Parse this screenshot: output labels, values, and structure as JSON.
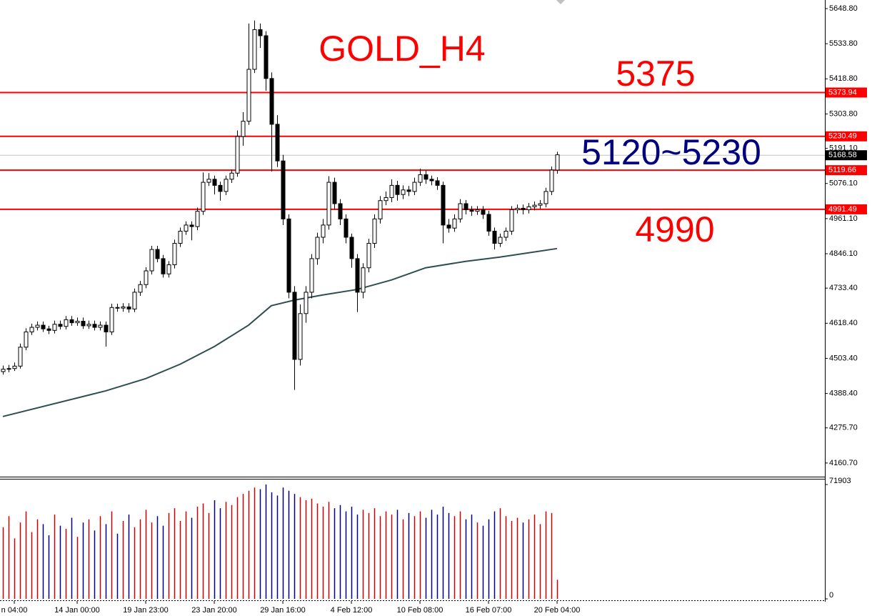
{
  "chart_data": {
    "type": "candlestick",
    "title": "GOLD_H4",
    "annotations": [
      {
        "text": "5375",
        "color": "#ff0000"
      },
      {
        "text": "5120~5230",
        "color": "#000080"
      },
      {
        "text": "4990",
        "color": "#ff0000"
      }
    ],
    "ylim": [
      4116,
      5677
    ],
    "yticks": [
      {
        "value": 5648.8,
        "label": "5648.80"
      },
      {
        "value": 5533.8,
        "label": "5533.80"
      },
      {
        "value": 5418.8,
        "label": "5418.80"
      },
      {
        "value": 5303.8,
        "label": "5303.80"
      },
      {
        "value": 5191.1,
        "label": "5191.10"
      },
      {
        "value": 5076.1,
        "label": "5076.10"
      },
      {
        "value": 4961.1,
        "label": "4961.10"
      },
      {
        "value": 4846.1,
        "label": "4846.10"
      },
      {
        "value": 4733.4,
        "label": "4733.40"
      },
      {
        "value": 4618.4,
        "label": "4618.40"
      },
      {
        "value": 4503.4,
        "label": "4503.40"
      },
      {
        "value": 4388.4,
        "label": "4388.40"
      },
      {
        "value": 4275.7,
        "label": "4275.70"
      },
      {
        "value": 4160.7,
        "label": "4160.70"
      }
    ],
    "levels": [
      5373.94,
      5230.49,
      5119.66,
      4991.49
    ],
    "level_color": "#ff0000",
    "current_price": 5168.58,
    "categories": [
      null,
      null,
      "n 04:00",
      null,
      null,
      null,
      null,
      null,
      null,
      null,
      null,
      null,
      null,
      "14 Jan 00:00",
      null,
      null,
      null,
      null,
      null,
      null,
      null,
      null,
      null,
      null,
      null,
      "19 Jan 23:00",
      null,
      null,
      null,
      null,
      null,
      null,
      null,
      null,
      null,
      null,
      null,
      "23 Jan 20:00",
      null,
      null,
      null,
      null,
      null,
      null,
      null,
      null,
      null,
      null,
      null,
      "29 Jan 16:00",
      null,
      null,
      null,
      null,
      null,
      null,
      null,
      null,
      null,
      null,
      null,
      "4 Feb 12:00",
      null,
      null,
      null,
      null,
      null,
      null,
      null,
      null,
      null,
      null,
      null,
      "10 Feb 08:00",
      null,
      null,
      null,
      null,
      null,
      null,
      null,
      null,
      null,
      null,
      null,
      "16 Feb 07:00",
      null,
      null,
      null,
      null,
      null,
      null,
      null,
      null,
      null,
      null,
      null,
      "20 Feb 04:00"
    ],
    "ohlc": [
      [
        4460,
        4480,
        4450,
        4468
      ],
      [
        4468,
        4482,
        4458,
        4470
      ],
      [
        4470,
        4490,
        4462,
        4478
      ],
      [
        4478,
        4552,
        4470,
        4540
      ],
      [
        4540,
        4602,
        4530,
        4590
      ],
      [
        4590,
        4617,
        4580,
        4605
      ],
      [
        4605,
        4624,
        4595,
        4612
      ],
      [
        4612,
        4624,
        4590,
        4600
      ],
      [
        4600,
        4610,
        4583,
        4595
      ],
      [
        4595,
        4627,
        4585,
        4615
      ],
      [
        4615,
        4627,
        4598,
        4608
      ],
      [
        4608,
        4642,
        4598,
        4630
      ],
      [
        4630,
        4642,
        4610,
        4620
      ],
      [
        4620,
        4637,
        4610,
        4625
      ],
      [
        4625,
        4637,
        4600,
        4610
      ],
      [
        4610,
        4627,
        4600,
        4615
      ],
      [
        4615,
        4627,
        4595,
        4605
      ],
      [
        4605,
        4624,
        4595,
        4612
      ],
      [
        4612,
        4624,
        4542,
        4590
      ],
      [
        4590,
        4682,
        4580,
        4670
      ],
      [
        4670,
        4682,
        4656,
        4668
      ],
      [
        4668,
        4684,
        4656,
        4672
      ],
      [
        4672,
        4684,
        4653,
        4665
      ],
      [
        4665,
        4732,
        4655,
        4720
      ],
      [
        4720,
        4757,
        4708,
        4745
      ],
      [
        4745,
        4802,
        4733,
        4790
      ],
      [
        4790,
        4872,
        4778,
        4860
      ],
      [
        4860,
        4872,
        4818,
        4830
      ],
      [
        4830,
        4842,
        4768,
        4780
      ],
      [
        4780,
        4822,
        4768,
        4810
      ],
      [
        4810,
        4892,
        4798,
        4880
      ],
      [
        4880,
        4932,
        4868,
        4920
      ],
      [
        4920,
        4952,
        4908,
        4940
      ],
      [
        4940,
        4952,
        4890,
        4935
      ],
      [
        4935,
        4997,
        4923,
        4985
      ],
      [
        4985,
        5112,
        4973,
        5080
      ],
      [
        5080,
        5110,
        5068,
        5090
      ],
      [
        5090,
        5102,
        5040,
        5070
      ],
      [
        5070,
        5082,
        5020,
        5050
      ],
      [
        5050,
        5102,
        5038,
        5090
      ],
      [
        5090,
        5122,
        5078,
        5110
      ],
      [
        5110,
        5250,
        5098,
        5230
      ],
      [
        5230,
        5310,
        5200,
        5280
      ],
      [
        5280,
        5600,
        5268,
        5450
      ],
      [
        5450,
        5610,
        5438,
        5580
      ],
      [
        5580,
        5600,
        5520,
        5560
      ],
      [
        5560,
        5575,
        5380,
        5420
      ],
      [
        5420,
        5440,
        5115,
        5270
      ],
      [
        5270,
        5300,
        5130,
        5150
      ],
      [
        5150,
        5170,
        4940,
        4960
      ],
      [
        4960,
        4975,
        4700,
        4720
      ],
      [
        4720,
        4740,
        4400,
        4500
      ],
      [
        4500,
        4680,
        4480,
        4650
      ],
      [
        4650,
        4740,
        4620,
        4720
      ],
      [
        4720,
        4845,
        4700,
        4830
      ],
      [
        4830,
        4915,
        4810,
        4900
      ],
      [
        4900,
        4960,
        4880,
        4940
      ],
      [
        4940,
        5100,
        4925,
        5080
      ],
      [
        5080,
        5095,
        4990,
        5010
      ],
      [
        5010,
        5025,
        4940,
        4960
      ],
      [
        4960,
        4975,
        4880,
        4900
      ],
      [
        4900,
        4912,
        4800,
        4830
      ],
      [
        4830,
        4845,
        4655,
        4720
      ],
      [
        4720,
        4815,
        4700,
        4800
      ],
      [
        4800,
        4895,
        4785,
        4880
      ],
      [
        4880,
        4975,
        4865,
        4960
      ],
      [
        4960,
        5035,
        4945,
        5020
      ],
      [
        5020,
        5050,
        5005,
        5030
      ],
      [
        5030,
        5090,
        5015,
        5070
      ],
      [
        5070,
        5085,
        5020,
        5040
      ],
      [
        5040,
        5070,
        5025,
        5055
      ],
      [
        5055,
        5068,
        5035,
        5050
      ],
      [
        5050,
        5095,
        5038,
        5080
      ],
      [
        5080,
        5125,
        5068,
        5105
      ],
      [
        5105,
        5120,
        5075,
        5090
      ],
      [
        5090,
        5102,
        5070,
        5085
      ],
      [
        5085,
        5097,
        5055,
        5070
      ],
      [
        5070,
        5082,
        4880,
        4940
      ],
      [
        4940,
        4960,
        4915,
        4930
      ],
      [
        4930,
        4975,
        4918,
        4960
      ],
      [
        4960,
        5025,
        4948,
        5010
      ],
      [
        5010,
        5022,
        4975,
        4990
      ],
      [
        4990,
        5002,
        4970,
        4985
      ],
      [
        4985,
        5002,
        4973,
        4990
      ],
      [
        4990,
        5002,
        4960,
        4975
      ],
      [
        4975,
        4987,
        4905,
        4920
      ],
      [
        4920,
        4932,
        4860,
        4880
      ],
      [
        4880,
        4912,
        4868,
        4900
      ],
      [
        4900,
        4932,
        4888,
        4920
      ],
      [
        4920,
        5002,
        4908,
        4990
      ],
      [
        4990,
        5007,
        4978,
        4995
      ],
      [
        4995,
        5007,
        4975,
        4990
      ],
      [
        4990,
        5012,
        4978,
        5000
      ],
      [
        5000,
        5017,
        4988,
        5005
      ],
      [
        5005,
        5022,
        4993,
        5010
      ],
      [
        5010,
        5062,
        4998,
        5050
      ],
      [
        5050,
        5132,
        5038,
        5120
      ],
      [
        5120,
        5180,
        5108,
        5170
      ]
    ],
    "ma": {
      "color": "#2f4f4f",
      "x": [
        0,
        18,
        25,
        31,
        37,
        43,
        47,
        51,
        56,
        62,
        68,
        74,
        81,
        87,
        97
      ],
      "values": [
        4313,
        4397,
        4437,
        4484,
        4542,
        4612,
        4676,
        4694,
        4711,
        4729,
        4760,
        4800,
        4821,
        4835,
        4863
      ]
    },
    "volume": {
      "ylim": [
        0,
        75500
      ],
      "yticks": [
        0,
        71903
      ],
      "up_color": "#cc0000",
      "down_color": "#000080",
      "values": [
        45000,
        52000,
        38000,
        48000,
        55000,
        42000,
        50000,
        47000,
        40000,
        53000,
        46000,
        44000,
        51000,
        39000,
        48000,
        50000,
        43000,
        52000,
        47000,
        55000,
        41000,
        49000,
        53000,
        45000,
        50000,
        56000,
        48000,
        52000,
        46000,
        54000,
        57000,
        49000,
        55000,
        51000,
        58000,
        60000,
        54000,
        62000,
        57000,
        61000,
        59000,
        64000,
        66000,
        68000,
        70000,
        69000,
        71903,
        67000,
        65000,
        70000,
        68000,
        66000,
        64000,
        62000,
        63000,
        60000,
        58000,
        61000,
        57000,
        59000,
        55000,
        58000,
        53000,
        56000,
        54000,
        57000,
        52000,
        55000,
        53000,
        56000,
        50000,
        54000,
        52000,
        55000,
        51000,
        56000,
        53000,
        58000,
        54000,
        52000,
        55000,
        50000,
        53000,
        48000,
        46000,
        50000,
        55000,
        57000,
        52000,
        49000,
        51000,
        48000,
        50000,
        53000,
        47000,
        55000,
        54000,
        12000
      ]
    }
  }
}
